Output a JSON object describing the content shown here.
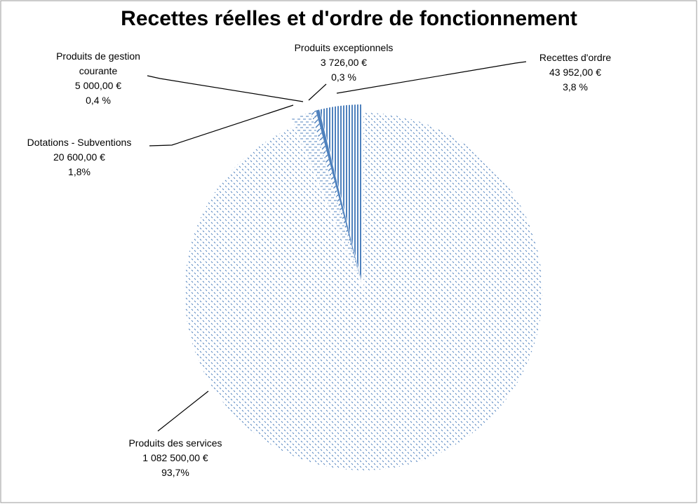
{
  "chart_data": {
    "type": "pie",
    "title": "Recettes réelles et d'ordre de fonctionnement",
    "categories": [
      "Produits des services",
      "Dotations - Subventions",
      "Produits de gestion courante",
      "Produits exceptionnels",
      "Recettes  d'ordre"
    ],
    "values": [
      1082500,
      20600,
      5000,
      3726,
      43952
    ],
    "value_labels": [
      "1 082 500,00 €",
      "20 600,00 €",
      "5 000,00 €",
      "3 726,00 €",
      "43 952,00 €"
    ],
    "percentages": [
      93.7,
      1.8,
      0.4,
      0.3,
      3.8
    ],
    "percentage_labels": [
      "93,7%",
      "1,8%",
      "0,4 %",
      "0,3 %",
      "3,8 %"
    ],
    "colors": [
      "#4f81bd",
      "#4f81bd",
      "#4f81bd",
      "#4f81bd",
      "#4f81bd"
    ]
  }
}
